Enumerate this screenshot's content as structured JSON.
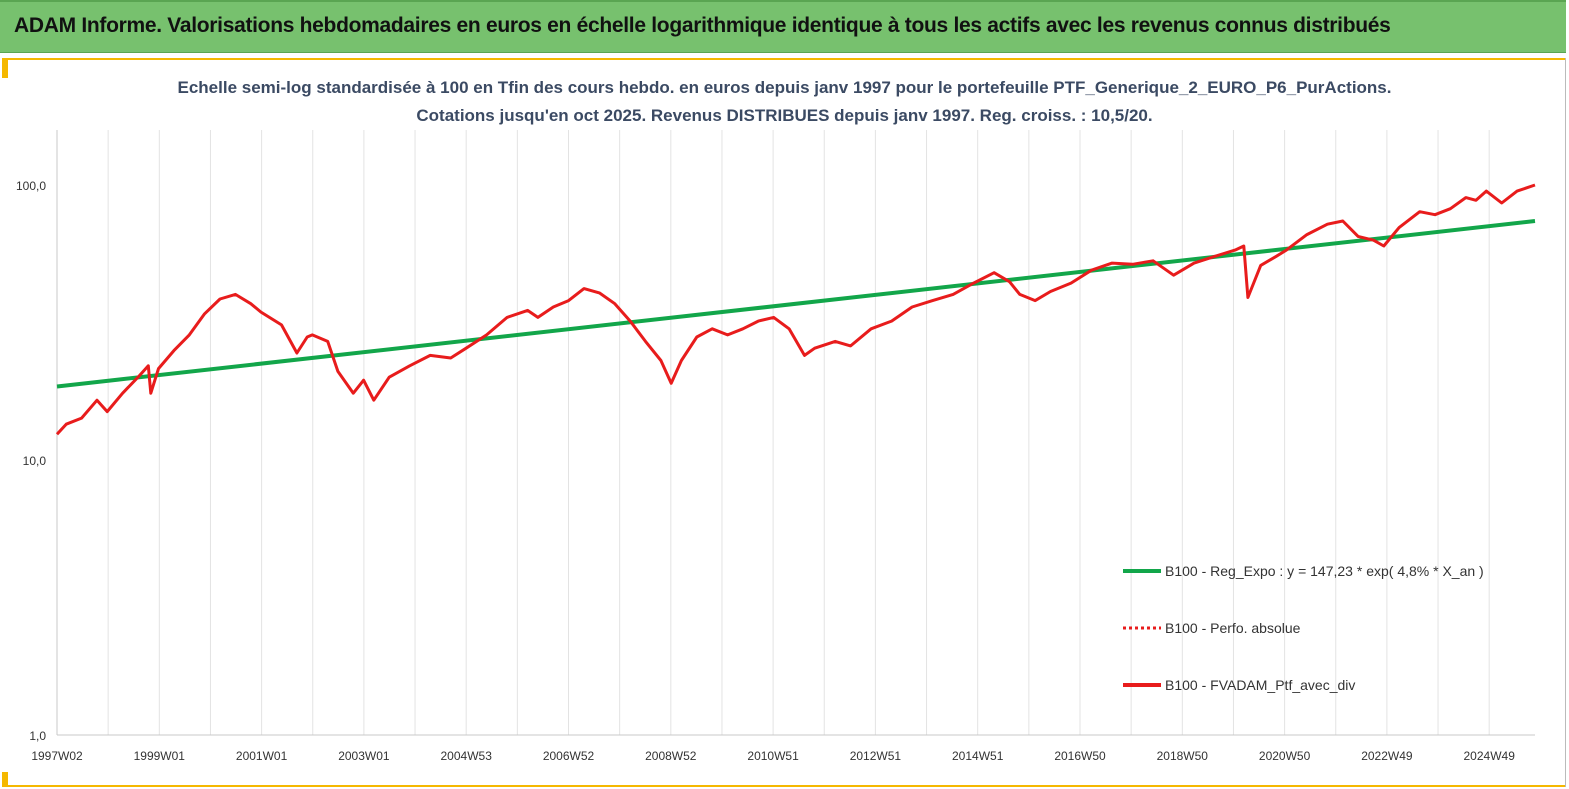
{
  "banner": {
    "title": "ADAM Informe. Valorisations hebdomadaires en euros en échelle logarithmique identique à tous les actifs avec les revenus connus distribués"
  },
  "chart_data": {
    "type": "line",
    "title": "Echelle semi-log standardisée  à 100 en Tfin des cours hebdo.  en euros depuis janv 1997 pour le portefeuille PTF_Generique_2_EURO_P6_PurActions.",
    "subtitle": "Cotations  jusqu'en oct 2025. Revenus DISTRIBUES depuis janv 1997. Reg. croiss.  : 10,5/20.",
    "y_scale": "log",
    "ylim": [
      1,
      200
    ],
    "y_ticks": [
      "1,0",
      "10,0",
      "100,0"
    ],
    "y_tick_values": [
      1,
      10,
      100
    ],
    "x_tick_labels": [
      "1997W02",
      "1999W01",
      "2001W01",
      "2003W01",
      "2004W53",
      "2006W52",
      "2008W52",
      "2010W51",
      "2012W51",
      "2014W51",
      "2016W50",
      "2018W50",
      "2020W50",
      "2022W49",
      "2024W49"
    ],
    "x_range": [
      1997.02,
      2025.85
    ],
    "grid": "vertical",
    "legend_position": "bottom-right",
    "series": [
      {
        "name": "B100 - Reg_Expo : y = 147,23 * exp( 4,8% *  X_an )",
        "color": "#12a64a",
        "style": "solid",
        "x": [
          1997.02,
          2025.85
        ],
        "y": [
          18.5,
          74.0
        ]
      },
      {
        "name": "B100 - Perfo. absolue",
        "color": "#e81c1c",
        "style": "dotted",
        "x": [],
        "y": []
      },
      {
        "name": "B100 - FVADAM_Ptf_avec_div",
        "color": "#e81c1c",
        "style": "solid",
        "x": [
          1997.02,
          1997.2,
          1997.5,
          1997.8,
          1998.0,
          1998.3,
          1998.6,
          1998.8,
          1998.85,
          1999.0,
          1999.3,
          1999.6,
          1999.9,
          2000.2,
          2000.5,
          2000.8,
          2001.0,
          2001.4,
          2001.7,
          2001.9,
          2002.0,
          2002.3,
          2002.5,
          2002.8,
          2003.0,
          2003.2,
          2003.5,
          2003.9,
          2004.3,
          2004.7,
          2005.0,
          2005.4,
          2005.8,
          2006.2,
          2006.4,
          2006.7,
          2007.0,
          2007.3,
          2007.6,
          2007.9,
          2008.2,
          2008.5,
          2008.8,
          2009.0,
          2009.2,
          2009.5,
          2009.8,
          2010.1,
          2010.4,
          2010.7,
          2011.0,
          2011.3,
          2011.6,
          2011.8,
          2012.2,
          2012.5,
          2012.9,
          2013.3,
          2013.7,
          2014.1,
          2014.5,
          2014.9,
          2015.3,
          2015.6,
          2015.8,
          2016.1,
          2016.4,
          2016.8,
          2017.2,
          2017.6,
          2018.0,
          2018.4,
          2018.8,
          2019.2,
          2019.6,
          2020.0,
          2020.17,
          2020.25,
          2020.5,
          2020.8,
          2021.0,
          2021.4,
          2021.8,
          2022.1,
          2022.4,
          2022.7,
          2022.9,
          2023.2,
          2023.6,
          2023.9,
          2024.2,
          2024.5,
          2024.7,
          2024.9,
          2025.2,
          2025.5,
          2025.85
        ],
        "y": [
          12.4,
          13.5,
          14.2,
          16.5,
          15.0,
          17.5,
          20.0,
          22.0,
          17.5,
          21.5,
          25.0,
          28.5,
          34.0,
          38.5,
          40.0,
          37.0,
          34.5,
          31.0,
          24.5,
          28.0,
          28.5,
          27.0,
          21.0,
          17.5,
          19.5,
          16.5,
          20.0,
          22.0,
          24.0,
          23.5,
          25.5,
          28.5,
          33.0,
          35.0,
          33.0,
          36.0,
          38.0,
          42.0,
          40.5,
          37.0,
          32.0,
          27.0,
          23.0,
          19.0,
          23.0,
          28.0,
          30.0,
          28.5,
          30.0,
          32.0,
          33.0,
          30.0,
          24.0,
          25.5,
          27.0,
          26.0,
          30.0,
          32.0,
          36.0,
          38.0,
          40.0,
          44.0,
          48.0,
          44.5,
          40.0,
          38.0,
          41.0,
          44.0,
          49.0,
          52.0,
          51.5,
          53.0,
          47.0,
          52.0,
          55.0,
          58.0,
          60.0,
          39.0,
          51.0,
          55.0,
          58.0,
          66.0,
          72.0,
          74.0,
          65.0,
          63.0,
          60.0,
          70.0,
          80.0,
          78.0,
          82.0,
          90.0,
          88.0,
          95.0,
          86.0,
          95.0,
          100.0
        ]
      }
    ]
  }
}
